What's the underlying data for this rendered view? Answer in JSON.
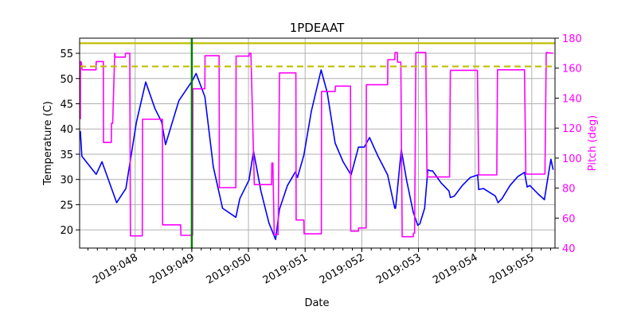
{
  "chart_data": {
    "type": "line",
    "title": "1PDEAAT",
    "xlabel": "Date",
    "ylabel": "Temperature (C)",
    "y2label": "Pitch (deg)",
    "xlim": [
      47.02,
      55.41
    ],
    "ylim": [
      16.4,
      58.0
    ],
    "y2lim": [
      40,
      180
    ],
    "grid": true,
    "x_ticks": [
      {
        "value": 48,
        "label": "2019:048"
      },
      {
        "value": 49,
        "label": "2019:049"
      },
      {
        "value": 50,
        "label": "2019:050"
      },
      {
        "value": 51,
        "label": "2019:051"
      },
      {
        "value": 52,
        "label": "2019:052"
      },
      {
        "value": 53,
        "label": "2019:053"
      },
      {
        "value": 54,
        "label": "2019:054"
      },
      {
        "value": 55,
        "label": "2019:055"
      }
    ],
    "y_ticks": [
      "20",
      "25",
      "30",
      "35",
      "40",
      "45",
      "50",
      "55"
    ],
    "y2_ticks": [
      "40",
      "60",
      "80",
      "100",
      "120",
      "140",
      "160",
      "180"
    ],
    "colors": {
      "temperature": "#0000ff",
      "pitch": "#ff00ff",
      "limits": "#bfbf00",
      "marker": "#008000",
      "grid": "#b0b0b0"
    },
    "hlines": [
      {
        "y": 57.0,
        "style": "solid"
      },
      {
        "y": 52.4,
        "style": "dashed"
      }
    ],
    "vline": {
      "x": 49.0
    },
    "series": [
      {
        "axis": "left",
        "key": "temperature",
        "points": [
          [
            47.032,
            39.6
          ],
          [
            47.06,
            34.6
          ],
          [
            47.313,
            31.0
          ],
          [
            47.415,
            33.5
          ],
          [
            47.673,
            25.4
          ],
          [
            47.836,
            28.2
          ],
          [
            48.024,
            41.4
          ],
          [
            48.187,
            49.3
          ],
          [
            48.351,
            44.0
          ],
          [
            48.467,
            41.4
          ],
          [
            48.537,
            36.9
          ],
          [
            48.771,
            45.6
          ],
          [
            49.006,
            49.5
          ],
          [
            49.076,
            51.0
          ],
          [
            49.23,
            46.4
          ],
          [
            49.379,
            32.5
          ],
          [
            49.543,
            24.3
          ],
          [
            49.777,
            22.5
          ],
          [
            49.847,
            26.2
          ],
          [
            50.01,
            29.9
          ],
          [
            50.09,
            35.6
          ],
          [
            50.22,
            27.7
          ],
          [
            50.36,
            21.4
          ],
          [
            50.478,
            18.1
          ],
          [
            50.548,
            24.1
          ],
          [
            50.688,
            28.8
          ],
          [
            50.829,
            31.5
          ],
          [
            50.865,
            30.4
          ],
          [
            50.978,
            34.8
          ],
          [
            51.109,
            43.5
          ],
          [
            51.282,
            51.7
          ],
          [
            51.39,
            47.2
          ],
          [
            51.53,
            37.2
          ],
          [
            51.67,
            33.5
          ],
          [
            51.811,
            30.9
          ],
          [
            51.941,
            36.4
          ],
          [
            52.043,
            36.4
          ],
          [
            52.137,
            38.3
          ],
          [
            52.277,
            34.8
          ],
          [
            52.456,
            30.9
          ],
          [
            52.582,
            24.3
          ],
          [
            52.596,
            24.3
          ],
          [
            52.698,
            35.9
          ],
          [
            52.792,
            29.8
          ],
          [
            52.909,
            23.5
          ],
          [
            52.989,
            20.9
          ],
          [
            53.025,
            21.2
          ],
          [
            53.109,
            24.3
          ],
          [
            53.165,
            31.9
          ],
          [
            53.213,
            31.7
          ],
          [
            53.25,
            31.7
          ],
          [
            53.4,
            29.3
          ],
          [
            53.54,
            27.7
          ],
          [
            53.564,
            26.4
          ],
          [
            53.634,
            26.7
          ],
          [
            53.774,
            28.8
          ],
          [
            53.915,
            30.4
          ],
          [
            54.045,
            30.9
          ],
          [
            54.064,
            28.0
          ],
          [
            54.147,
            28.2
          ],
          [
            54.358,
            26.7
          ],
          [
            54.405,
            25.4
          ],
          [
            54.475,
            26.2
          ],
          [
            54.616,
            28.8
          ],
          [
            54.756,
            30.6
          ],
          [
            54.872,
            31.4
          ],
          [
            54.919,
            28.5
          ],
          [
            54.966,
            28.8
          ],
          [
            55.107,
            27.2
          ],
          [
            55.223,
            26.0
          ],
          [
            55.27,
            29.3
          ],
          [
            55.339,
            34.0
          ],
          [
            55.377,
            31.9
          ]
        ]
      },
      {
        "axis": "right",
        "key": "pitch",
        "points": [
          [
            47.032,
            125.9
          ],
          [
            47.034,
            164.4
          ],
          [
            47.05,
            164
          ],
          [
            47.065,
            158.9
          ],
          [
            47.309,
            158.9
          ],
          [
            47.312,
            164.4
          ],
          [
            47.439,
            164.4
          ],
          [
            47.442,
            110.4
          ],
          [
            47.579,
            110.4
          ],
          [
            47.582,
            123.2
          ],
          [
            47.603,
            123.2
          ],
          [
            47.64,
            170
          ],
          [
            47.645,
            167.4
          ],
          [
            47.827,
            167.4
          ],
          [
            47.83,
            170
          ],
          [
            47.906,
            170
          ],
          [
            47.916,
            48.1
          ],
          [
            48.126,
            48.1
          ],
          [
            48.13,
            125.9
          ],
          [
            48.481,
            125.9
          ],
          [
            48.485,
            55.5
          ],
          [
            48.804,
            55.5
          ],
          [
            48.808,
            48.5
          ],
          [
            49.014,
            48.5
          ],
          [
            49.018,
            146.2
          ],
          [
            49.23,
            146.2
          ],
          [
            49.234,
            168.3
          ],
          [
            49.482,
            168.3
          ],
          [
            49.486,
            80.3
          ],
          [
            49.777,
            80.3
          ],
          [
            49.781,
            168
          ],
          [
            50.01,
            168
          ],
          [
            50.013,
            170
          ],
          [
            50.043,
            170
          ],
          [
            50.104,
            82.3
          ],
          [
            50.408,
            82.3
          ],
          [
            50.412,
            96.7
          ],
          [
            50.431,
            96.7
          ],
          [
            50.454,
            49
          ],
          [
            50.524,
            49
          ],
          [
            50.548,
            156.8
          ],
          [
            50.837,
            156.8
          ],
          [
            50.841,
            58.7
          ],
          [
            50.978,
            58.7
          ],
          [
            50.982,
            49.5
          ],
          [
            51.286,
            49.5
          ],
          [
            51.29,
            144.4
          ],
          [
            51.53,
            144.4
          ],
          [
            51.534,
            148
          ],
          [
            51.801,
            148
          ],
          [
            51.805,
            51.3
          ],
          [
            51.941,
            51.3
          ],
          [
            51.945,
            53.4
          ],
          [
            52.077,
            53.4
          ],
          [
            52.081,
            148.9
          ],
          [
            52.456,
            148.9
          ],
          [
            52.46,
            165.7
          ],
          [
            52.582,
            165.7
          ],
          [
            52.586,
            170.4
          ],
          [
            52.628,
            170.4
          ],
          [
            52.632,
            164
          ],
          [
            52.689,
            164
          ],
          [
            52.713,
            47.6
          ],
          [
            52.909,
            47.6
          ],
          [
            52.913,
            49.9
          ],
          [
            52.933,
            49.9
          ],
          [
            52.955,
            170.4
          ],
          [
            53.129,
            170.4
          ],
          [
            53.152,
            87.4
          ],
          [
            53.55,
            87.4
          ],
          [
            53.564,
            158.6
          ],
          [
            54.041,
            158.6
          ],
          [
            54.064,
            88.8
          ],
          [
            54.382,
            88.8
          ],
          [
            54.396,
            158.9
          ],
          [
            54.872,
            158.9
          ],
          [
            54.896,
            89.3
          ],
          [
            55.233,
            89.3
          ],
          [
            55.256,
            170.4
          ],
          [
            55.377,
            169.9
          ]
        ]
      }
    ]
  }
}
